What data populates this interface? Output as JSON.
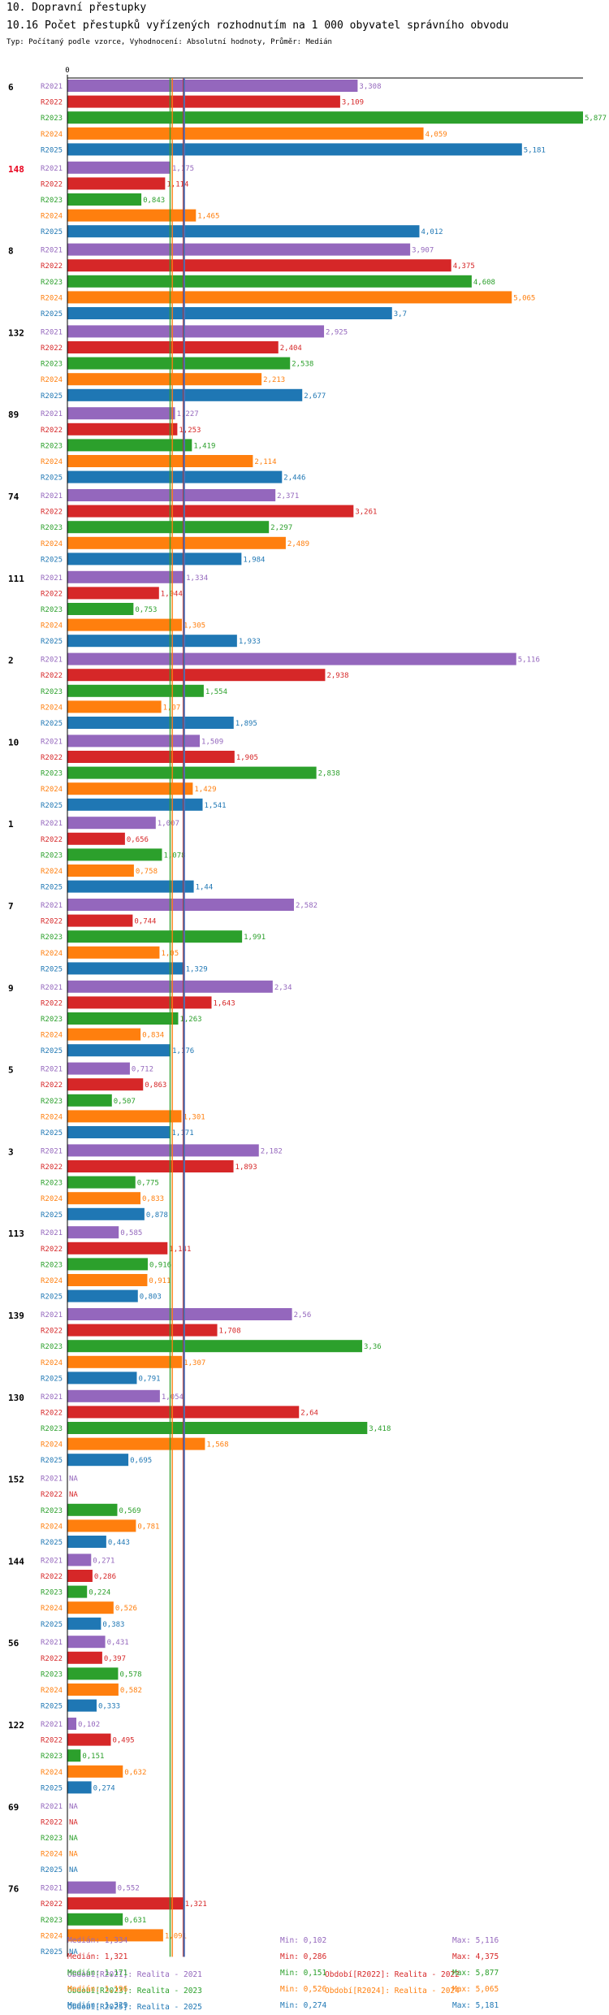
{
  "header": {
    "title": "10. Dopravní přestupky",
    "chart_title": "10.16 Počet přestupků vyřízených rozhodnutím na 1 000 obyvatel správního obvodu",
    "subtitle": "Typ: Počítaný podle vzorce, Vyhodnocení: Absolutní hodnoty, Průměr: Medián"
  },
  "chart_data": {
    "type": "bar",
    "orientation": "horizontal",
    "axis_zero_label": "0",
    "xlim": [
      0,
      5.877
    ],
    "series_names": [
      "R2021",
      "R2022",
      "R2023",
      "R2024",
      "R2025"
    ],
    "series_colors": [
      "#9467bd",
      "#d62728",
      "#2ca02c",
      "#ff7f0e",
      "#1f77b4"
    ],
    "groups": [
      {
        "label": "6",
        "highlight": false,
        "values": [
          3.308,
          3.109,
          5.877,
          4.059,
          5.181
        ]
      },
      {
        "label": "148",
        "highlight": true,
        "values": [
          1.175,
          1.114,
          0.843,
          1.465,
          4.012
        ]
      },
      {
        "label": "8",
        "highlight": false,
        "values": [
          3.907,
          4.375,
          4.608,
          5.065,
          3.7
        ]
      },
      {
        "label": "132",
        "highlight": false,
        "values": [
          2.925,
          2.404,
          2.538,
          2.213,
          2.677
        ]
      },
      {
        "label": "89",
        "highlight": false,
        "values": [
          1.227,
          1.253,
          1.419,
          2.114,
          2.446
        ]
      },
      {
        "label": "74",
        "highlight": false,
        "values": [
          2.371,
          3.261,
          2.297,
          2.489,
          1.984
        ]
      },
      {
        "label": "111",
        "highlight": false,
        "values": [
          1.334,
          1.044,
          0.753,
          1.305,
          1.933
        ]
      },
      {
        "label": "2",
        "highlight": false,
        "values": [
          5.116,
          2.938,
          1.554,
          1.07,
          1.895
        ]
      },
      {
        "label": "10",
        "highlight": false,
        "values": [
          1.509,
          1.905,
          2.838,
          1.429,
          1.541
        ]
      },
      {
        "label": "1",
        "highlight": false,
        "values": [
          1.007,
          0.656,
          1.078,
          0.758,
          1.44
        ]
      },
      {
        "label": "7",
        "highlight": false,
        "values": [
          2.582,
          0.744,
          1.991,
          1.05,
          1.329
        ]
      },
      {
        "label": "9",
        "highlight": false,
        "values": [
          2.34,
          1.643,
          1.263,
          0.834,
          1.176
        ]
      },
      {
        "label": "5",
        "highlight": false,
        "values": [
          0.712,
          0.863,
          0.507,
          1.301,
          1.171
        ]
      },
      {
        "label": "3",
        "highlight": false,
        "values": [
          2.182,
          1.893,
          0.775,
          0.833,
          0.878
        ]
      },
      {
        "label": "113",
        "highlight": false,
        "values": [
          0.585,
          1.141,
          0.916,
          0.911,
          0.803
        ]
      },
      {
        "label": "139",
        "highlight": false,
        "values": [
          2.56,
          1.708,
          3.36,
          1.307,
          0.791
        ]
      },
      {
        "label": "130",
        "highlight": false,
        "values": [
          1.054,
          2.64,
          3.418,
          1.568,
          0.695
        ]
      },
      {
        "label": "152",
        "highlight": false,
        "values": [
          null,
          null,
          0.569,
          0.781,
          0.443
        ]
      },
      {
        "label": "144",
        "highlight": false,
        "values": [
          0.271,
          0.286,
          0.224,
          0.526,
          0.383
        ]
      },
      {
        "label": "56",
        "highlight": false,
        "values": [
          0.431,
          0.397,
          0.578,
          0.582,
          0.333
        ]
      },
      {
        "label": "122",
        "highlight": false,
        "values": [
          0.102,
          0.495,
          0.151,
          0.632,
          0.274
        ]
      },
      {
        "label": "69",
        "highlight": false,
        "values": [
          null,
          null,
          null,
          null,
          null
        ]
      },
      {
        "label": "76",
        "highlight": false,
        "values": [
          0.552,
          1.321,
          0.631,
          1.091,
          null
        ]
      }
    ],
    "value_labels": [
      [
        "3,308",
        "3,109",
        "5,877",
        "4,059",
        "5,181"
      ],
      [
        "1,175",
        "1,114",
        "0,843",
        "1,465",
        "4,012"
      ],
      [
        "3,907",
        "4,375",
        "4,608",
        "5,065",
        "3,7"
      ],
      [
        "2,925",
        "2,404",
        "2,538",
        "2,213",
        "2,677"
      ],
      [
        "1,227",
        "1,253",
        "1,419",
        "2,114",
        "2,446"
      ],
      [
        "2,371",
        "3,261",
        "2,297",
        "2,489",
        "1,984"
      ],
      [
        "1,334",
        "1,044",
        "0,753",
        "1,305",
        "1,933"
      ],
      [
        "5,116",
        "2,938",
        "1,554",
        "1,07",
        "1,895"
      ],
      [
        "1,509",
        "1,905",
        "2,838",
        "1,429",
        "1,541"
      ],
      [
        "1,007",
        "0,656",
        "1,078",
        "0,758",
        "1,44"
      ],
      [
        "2,582",
        "0,744",
        "1,991",
        "1,05",
        "1,329"
      ],
      [
        "2,34",
        "1,643",
        "1,263",
        "0,834",
        "1,176"
      ],
      [
        "0,712",
        "0,863",
        "0,507",
        "1,301",
        "1,171"
      ],
      [
        "2,182",
        "1,893",
        "0,775",
        "0,833",
        "0,878"
      ],
      [
        "0,585",
        "1,141",
        "0,916",
        "0,911",
        "0,803"
      ],
      [
        "2,56",
        "1,708",
        "3,36",
        "1,307",
        "0,791"
      ],
      [
        "1,054",
        "2,64",
        "3,418",
        "1,568",
        "0,695"
      ],
      [
        "NA",
        "NA",
        "0,569",
        "0,781",
        "0,443"
      ],
      [
        "0,271",
        "0,286",
        "0,224",
        "0,526",
        "0,383"
      ],
      [
        "0,431",
        "0,397",
        "0,578",
        "0,582",
        "0,333"
      ],
      [
        "0,102",
        "0,495",
        "0,151",
        "0,632",
        "0,274"
      ],
      [
        "NA",
        "NA",
        "NA",
        "NA",
        "NA"
      ],
      [
        "0,552",
        "1,321",
        "0,631",
        "1,091",
        "NA"
      ]
    ],
    "median_lines": [
      {
        "series": "R2021",
        "value": 1.334
      },
      {
        "series": "R2022",
        "value": 1.321
      },
      {
        "series": "R2023",
        "value": 1.171
      },
      {
        "series": "R2024",
        "value": 1.196
      },
      {
        "series": "R2025",
        "value": 1.329
      }
    ]
  },
  "legend": {
    "items": [
      {
        "label": "Období[R2021]: Realita - 2021",
        "color": "#9467bd"
      },
      {
        "label": "Období[R2022]: Realita - 2022",
        "color": "#d62728"
      },
      {
        "label": "Období[R2023]: Realita - 2023",
        "color": "#2ca02c"
      },
      {
        "label": "Období[R2024]: Realita - 2024",
        "color": "#ff7f0e"
      },
      {
        "label": "Období[R2025]: Realita - 2025",
        "color": "#1f77b4"
      }
    ]
  },
  "stats": [
    {
      "median": "Medián: 1,334",
      "min": "Min: 0,102",
      "max": "Max: 5,116",
      "color": "#9467bd"
    },
    {
      "median": "Medián: 1,321",
      "min": "Min: 0,286",
      "max": "Max: 4,375",
      "color": "#d62728"
    },
    {
      "median": "Medián: 1,171",
      "min": "Min: 0,151",
      "max": "Max: 5,877",
      "color": "#2ca02c"
    },
    {
      "median": "Medián: 1,196",
      "min": "Min: 0,526",
      "max": "Max: 5,065",
      "color": "#ff7f0e"
    },
    {
      "median": "Medián: 1,329",
      "min": "Min: 0,274",
      "max": "Max: 5,181",
      "color": "#1f77b4"
    }
  ]
}
